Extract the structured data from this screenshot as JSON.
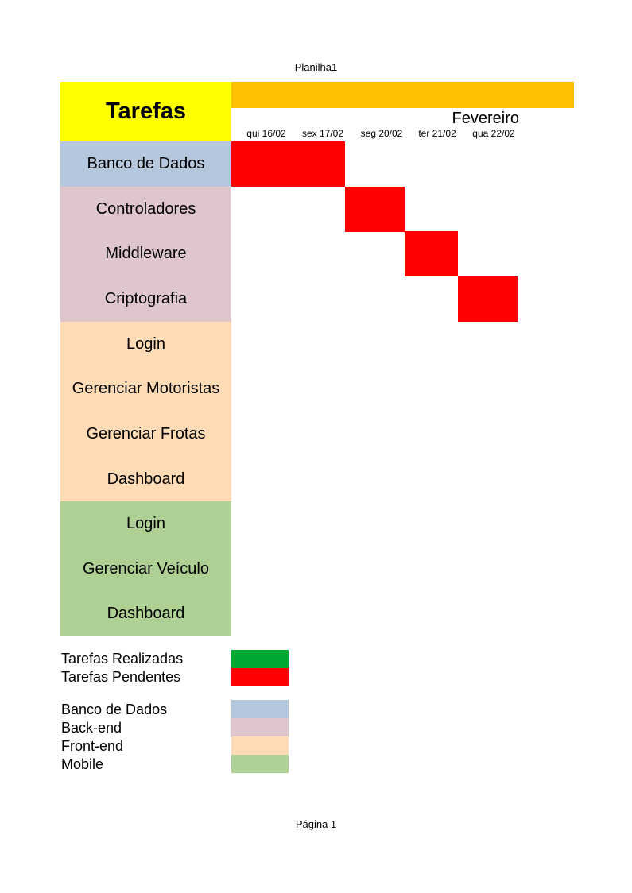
{
  "sheet_name": "Planilha1",
  "page_label": "Página 1",
  "header": {
    "title": "Tarefas",
    "month": "Fevereiro",
    "days": [
      "qui 16/02",
      "sex 17/02",
      "seg 20/02",
      "ter 21/02",
      "qua 22/02"
    ]
  },
  "colors": {
    "title_bg": "#ffff00",
    "month_bar": "#ffc000",
    "pending": "#ff0000",
    "done": "#00a933",
    "database": "#b4c7dc",
    "backend": "#dec6cc",
    "frontend": "#ffdbb6",
    "mobile": "#afd095"
  },
  "tasks": [
    {
      "label": "Banco de Dados",
      "category": "database"
    },
    {
      "label": "Controladores",
      "category": "backend"
    },
    {
      "label": "Middleware",
      "category": "backend"
    },
    {
      "label": "Criptografia",
      "category": "backend"
    },
    {
      "label": "Login",
      "category": "frontend"
    },
    {
      "label": "Gerenciar Motoristas",
      "category": "frontend"
    },
    {
      "label": "Gerenciar Frotas",
      "category": "frontend"
    },
    {
      "label": "Dashboard",
      "category": "frontend"
    },
    {
      "label": "Login",
      "category": "mobile"
    },
    {
      "label": "Gerenciar Veículo",
      "category": "mobile"
    },
    {
      "label": "Dashboard",
      "category": "mobile"
    }
  ],
  "legend": {
    "status": [
      {
        "label": "Tarefas Realizadas",
        "color_key": "done"
      },
      {
        "label": "Tarefas Pendentes",
        "color_key": "pending"
      }
    ],
    "categories": [
      {
        "label": "Banco de Dados",
        "color_key": "database"
      },
      {
        "label": "Back-end",
        "color_key": "backend"
      },
      {
        "label": "Front-end",
        "color_key": "frontend"
      },
      {
        "label": "Mobile",
        "color_key": "mobile"
      }
    ]
  }
}
